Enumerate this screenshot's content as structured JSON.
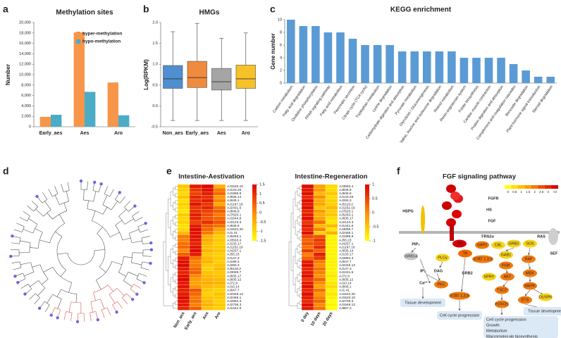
{
  "panel_letters": [
    "a",
    "b",
    "c",
    "d",
    "e",
    "f"
  ],
  "chart_data": [
    {
      "type": "bar",
      "title": "Methylation sites",
      "ylabel": "Number",
      "categories": [
        "Early_aes",
        "Aes",
        "Aro"
      ],
      "series": [
        {
          "name": "hyper-methylation",
          "color": "#f7964a",
          "values": [
            1900,
            18100,
            8500
          ]
        },
        {
          "name": "hypo-methylation",
          "color": "#4bacc6",
          "values": [
            2300,
            6700,
            2200
          ]
        }
      ],
      "ylim": [
        0,
        20000
      ],
      "yticks": [
        0,
        {
          "value": 2000,
          "label": "2,000"
        },
        {
          "value": 4000,
          "label": "4,000"
        },
        {
          "value": 6000,
          "label": "6,000"
        },
        {
          "value": 8000,
          "label": "8,000"
        },
        {
          "value": 10000,
          "label": "10,000"
        },
        {
          "value": 12000,
          "label": "12,000"
        },
        {
          "value": 14000,
          "label": "14,000"
        },
        {
          "value": 16000,
          "label": "16,000"
        },
        {
          "value": 18000,
          "label": "18,000"
        },
        {
          "value": 20000,
          "label": "20,000"
        }
      ],
      "legend": "upper-right"
    },
    {
      "type": "box",
      "title": "HMGs",
      "ylabel": "Log(RPKM)",
      "categories": [
        "Non_aes",
        "Early_aes",
        "Aes",
        "Aro"
      ],
      "colors": [
        "#4f8fd0",
        "#f08a3c",
        "#a5a5a5",
        "#f7c12a"
      ],
      "low": [
        -0.35,
        -0.35,
        -0.35,
        -0.35
      ],
      "q1": [
        0.42,
        0.44,
        0.38,
        0.42
      ],
      "median": [
        0.65,
        0.68,
        0.58,
        0.65
      ],
      "q3": [
        0.97,
        1.07,
        0.9,
        0.98
      ],
      "high": [
        1.78,
        1.98,
        1.62,
        1.75
      ],
      "ylim": [
        -0.5,
        2.0
      ],
      "yticks": [
        -0.5,
        {
          "value": 0,
          "label": "0.0"
        },
        0.5,
        {
          "value": 1,
          "label": "1.0"
        },
        1.5,
        {
          "value": 2,
          "label": "2.0"
        }
      ]
    },
    {
      "type": "bar",
      "title": "KEGG enrichment",
      "ylabel": "Gene number",
      "categories": [
        "Carbon metabolism",
        "Fatty acid degradation",
        "Oxidative phosphorylation",
        "PPAR signaling pathway",
        "Fatty acid metabolism",
        "Pancreatic secretion",
        "Citrate cycle (TCA cycle)",
        "Tryptophan metabolism",
        "Lysine degradation",
        "Carbohydrate digestion and absorption",
        "Pyruvate metabolism",
        "Glycolysis / Gluconeogenesis",
        "Valine, leucine and isoleucine degradation",
        "Retinol metabolism",
        "Renin-angiotensin system",
        "Folate biosynthesis",
        "Cardiac muscle contraction",
        "Protein digestion and absorption",
        "Complement and coagulation cascades",
        "Benzoate degradation",
        "Plant hormone signal transduction",
        "Steroid degradation"
      ],
      "values": [
        10,
        9,
        9,
        8,
        8,
        7,
        6,
        6,
        6,
        5,
        5,
        5,
        5,
        5,
        4,
        4,
        4,
        4,
        3,
        2,
        1,
        1
      ],
      "color": "#5b9bd5",
      "ylim": [
        0,
        10
      ],
      "yticks": [
        0,
        2,
        4,
        6,
        8,
        10
      ]
    }
  ],
  "heatmaps": [
    {
      "title": "Intestine-Aestivation",
      "columns": [
        "Non_aes",
        "Early_aes",
        "Aes",
        "Aro"
      ],
      "rows": [
        "AJ1520.10",
        "AJ143.26",
        "AJ1996.8",
        "AJ835.14",
        "AJ849.1",
        "AJ1197.18",
        "AJ2431.5",
        "AJ846.8",
        "AJ7620.1",
        "AJ1044.6",
        "AJ2123.3",
        "AJ846.9",
        "AJ1522.20",
        "AJ1.41",
        "AJ5263.1",
        "AJ3593.4",
        "AJ133.17",
        "AJ1152.19",
        "AJ4257.1",
        "AJ55.23",
        "AJ147.3",
        "AJ199.3",
        "AJ293.3",
        "AJ5119.2",
        "AJ3095.7",
        "AJ835.17",
        "AJ835.12",
        "AJ72.9",
        "AJ10.14",
        "AJ947.7",
        "AJ2345.13",
        "AJ2466.1",
        "AJ2894.3",
        "AJ2706.3",
        "AJ1441.6"
      ],
      "values": [
        [
          -0.8,
          1.2,
          1.4,
          -0.5
        ],
        [
          -0.9,
          0.9,
          1.3,
          0.2
        ],
        [
          -1.0,
          0.8,
          1.2,
          0.4
        ],
        [
          -0.7,
          1.1,
          1.0,
          -0.2
        ],
        [
          -1.1,
          1.0,
          1.2,
          0.1
        ],
        [
          -0.9,
          1.3,
          0.9,
          -0.4
        ],
        [
          -1.0,
          0.9,
          1.1,
          0.3
        ],
        [
          -1.2,
          1.0,
          0.8,
          0.5
        ],
        [
          -0.8,
          1.2,
          0.7,
          0.2
        ],
        [
          -1.0,
          1.1,
          0.6,
          0.4
        ],
        [
          -0.9,
          0.8,
          1.0,
          0.6
        ],
        [
          -1.1,
          1.2,
          0.5,
          0.3
        ],
        [
          -1.0,
          1.4,
          0.4,
          -0.3
        ],
        [
          -0.6,
          1.3,
          0.2,
          -0.5
        ],
        [
          0.2,
          1.3,
          -0.5,
          -0.9
        ],
        [
          0.1,
          1.2,
          -0.4,
          -0.8
        ],
        [
          0.3,
          1.1,
          -0.6,
          -0.9
        ],
        [
          0.4,
          1.3,
          -0.7,
          -0.8
        ],
        [
          0.0,
          1.4,
          -0.5,
          -0.7
        ],
        [
          0.5,
          1.2,
          -0.8,
          -0.9
        ],
        [
          1.2,
          0.3,
          -0.6,
          -0.8
        ],
        [
          1.3,
          0.1,
          -0.5,
          -0.9
        ],
        [
          1.4,
          0.2,
          -0.8,
          -0.7
        ],
        [
          1.2,
          0.4,
          -0.9,
          -0.6
        ],
        [
          1.1,
          0.5,
          -0.7,
          -0.8
        ],
        [
          1.3,
          0.0,
          -0.6,
          -0.7
        ],
        [
          1.4,
          -0.2,
          -0.5,
          -0.6
        ],
        [
          1.2,
          -0.3,
          -0.4,
          -0.5
        ],
        [
          1.3,
          -0.1,
          -0.6,
          -0.7
        ],
        [
          1.1,
          0.6,
          -0.8,
          -0.9
        ],
        [
          1.2,
          0.4,
          -0.9,
          -0.7
        ],
        [
          1.4,
          0.2,
          -0.7,
          -0.8
        ],
        [
          1.3,
          0.3,
          -0.6,
          -0.9
        ],
        [
          1.2,
          0.1,
          -0.5,
          -0.8
        ],
        [
          1.1,
          0.5,
          -0.7,
          -0.9
        ]
      ],
      "scale_lim": [
        -1.5,
        1.5
      ],
      "scale_ticks": [
        1.5,
        1,
        0.5,
        0,
        -0.5,
        -1,
        -1.5
      ]
    },
    {
      "title": "Intestine-Regeneration",
      "columns": [
        "0 day",
        "10 days",
        "20 days"
      ],
      "rows": [
        "AJ3593.4",
        "AJ846.9",
        "AJ846.8",
        "AJ143.26",
        "AJ293.3",
        "AJ5119.2",
        "AJ1152.19",
        "AJ7620.1",
        "AJ5263.1",
        "AJ835.17",
        "AJ2123.3",
        "AJ1441.6",
        "AJ3095.7",
        "AJ2466.1",
        "AJ1996.8",
        "AJ55.23",
        "AJ4257.1",
        "AJ1197.18",
        "AJ835.14",
        "AJ133.17",
        "AJ2894.3",
        "AJ947.7",
        "AJ2345.13",
        "AJ147.3",
        "AJ2431.5",
        "AJ72.9",
        "AJ835.12",
        "AJ10.14",
        "AJ849.1",
        "AJ1.41",
        "AJ1522.20",
        "AJ1520.10",
        "AJ2706.3",
        "AJ1549.13",
        "AJ857.3"
      ],
      "values": [
        [
          0.9,
          -0.2,
          -0.7
        ],
        [
          0.8,
          -0.1,
          -0.7
        ],
        [
          0.9,
          -0.4,
          -0.5
        ],
        [
          0.7,
          0.0,
          -0.7
        ],
        [
          0.9,
          -0.3,
          -0.6
        ],
        [
          0.8,
          -0.2,
          -0.6
        ],
        [
          0.9,
          -0.5,
          -0.4
        ],
        [
          0.7,
          -0.1,
          -0.6
        ],
        [
          0.8,
          -0.3,
          -0.5
        ],
        [
          0.9,
          -0.2,
          -0.7
        ],
        [
          0.6,
          0.2,
          -0.8
        ],
        [
          0.8,
          -0.4,
          -0.4
        ],
        [
          0.7,
          0.1,
          -0.8
        ],
        [
          0.9,
          -0.6,
          -0.3
        ],
        [
          0.5,
          0.4,
          -0.9
        ],
        [
          0.3,
          0.6,
          -0.9
        ],
        [
          0.4,
          0.5,
          -0.9
        ],
        [
          0.2,
          0.7,
          -0.9
        ],
        [
          0.6,
          0.3,
          -0.9
        ],
        [
          0.1,
          0.8,
          -0.9
        ],
        [
          0.3,
          0.6,
          -0.9
        ],
        [
          0.8,
          0.1,
          -0.9
        ],
        [
          0.9,
          0.0,
          -0.9
        ],
        [
          0.7,
          0.2,
          -0.9
        ],
        [
          0.8,
          0.1,
          -0.9
        ],
        [
          0.9,
          -0.1,
          -0.8
        ],
        [
          0.6,
          0.3,
          -0.9
        ],
        [
          0.8,
          0.0,
          -0.8
        ],
        [
          0.9,
          -0.2,
          -0.7
        ],
        [
          0.7,
          0.2,
          -0.9
        ],
        [
          0.9,
          -0.1,
          -0.8
        ],
        [
          0.8,
          0.1,
          -0.9
        ],
        [
          0.7,
          0.3,
          -1.0
        ],
        [
          0.9,
          0.0,
          -0.9
        ],
        [
          0.8,
          0.2,
          -1.0
        ]
      ],
      "scale_lim": [
        -1,
        1
      ],
      "scale_ticks": [
        1,
        0.5,
        0,
        -0.5,
        -1
      ]
    }
  ],
  "pathway": {
    "title": "FGF signaling pathway",
    "legend_labels": [
      "0",
      "0.5",
      "1",
      "1.5",
      "2",
      "2.5",
      "3",
      ">3"
    ],
    "nodes": [
      "FGFR",
      "HS",
      "FGF",
      "HSPG",
      "PIP₂",
      "GRB14",
      "PLCγ",
      "TK",
      "TK",
      "FRS2α",
      "SHP2",
      "STAT 1,3,5",
      "CBL",
      "GRB2",
      "SOS",
      "RAS",
      "SEF",
      "GAB1",
      "PI3K",
      "RAF",
      "GRB2",
      "IP₃",
      "DAG",
      "Ca²⁺",
      "PKC",
      "SPRY",
      "AKT",
      "MEK",
      "MAPK",
      "TSC2",
      "DUSP6",
      "Tissue development",
      "STAT 1,3,5",
      "Cell cycle progression",
      "FOXO1",
      "ETS",
      "Tissue development",
      "Cell cycle progression",
      "Growth",
      "Metabolism",
      "Macromolecule biosynthesis"
    ]
  }
}
